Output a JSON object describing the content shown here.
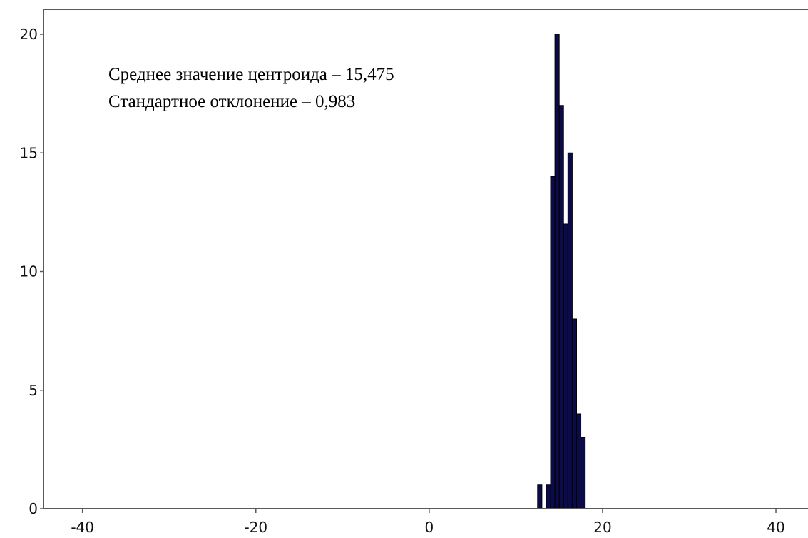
{
  "chart_data": {
    "type": "bar",
    "title": "",
    "xlabel": "",
    "ylabel": "",
    "xlim": [
      -44.5,
      43.7
    ],
    "ylim": [
      0,
      21
    ],
    "x_ticks": [
      -40,
      -20,
      0,
      20,
      40
    ],
    "y_ticks": [
      0,
      5,
      10,
      15,
      20
    ],
    "x_tick_labels": [
      "-40",
      "-20",
      "0",
      "20",
      "40"
    ],
    "y_tick_labels": [
      "0",
      "5",
      "10",
      "15",
      "20"
    ],
    "bin_width": 0.5,
    "bins": [
      {
        "x0": 12.5,
        "x1": 13.0,
        "count": 1
      },
      {
        "x0": 13.0,
        "x1": 13.5,
        "count": 0
      },
      {
        "x0": 13.5,
        "x1": 14.0,
        "count": 1
      },
      {
        "x0": 14.0,
        "x1": 14.5,
        "count": 14
      },
      {
        "x0": 14.5,
        "x1": 15.0,
        "count": 20
      },
      {
        "x0": 15.0,
        "x1": 15.5,
        "count": 17
      },
      {
        "x0": 15.5,
        "x1": 16.0,
        "count": 12
      },
      {
        "x0": 16.0,
        "x1": 16.5,
        "count": 15
      },
      {
        "x0": 16.5,
        "x1": 17.0,
        "count": 8
      },
      {
        "x0": 17.0,
        "x1": 17.5,
        "count": 4
      },
      {
        "x0": 17.5,
        "x1": 18.0,
        "count": 3
      }
    ],
    "annotations": [
      "Среднее значение центроида – 15,475",
      "Стандартное отклонение – 0,983"
    ],
    "grid": false,
    "bar_color": "#0b0b4a",
    "bar_edge_color": "#000000",
    "axis_color": "#5a5a5a"
  }
}
